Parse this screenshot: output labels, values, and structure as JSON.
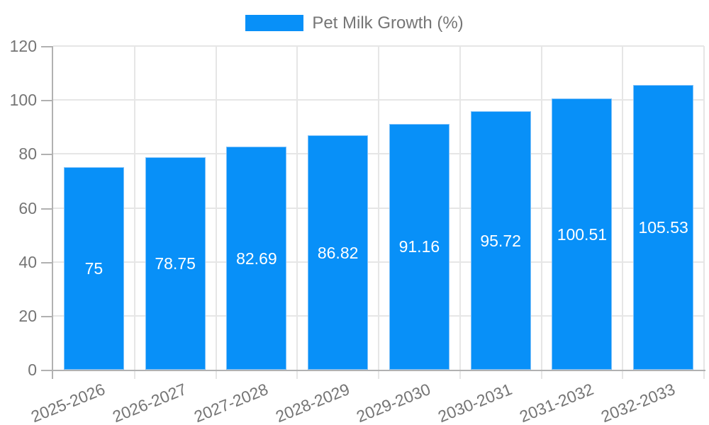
{
  "legend": {
    "label": "Pet Milk Growth (%)"
  },
  "colors": {
    "bar": "#0890f8",
    "bar_border": "#7fc1f9",
    "grid": "#e6e6e6",
    "axis": "#b1b1b1",
    "tick_text": "#757575",
    "value_text": "#ffffff",
    "background": "#ffffff"
  },
  "chart_data": {
    "type": "bar",
    "title": "Pet Milk Growth (%)",
    "categories": [
      "2025-2026",
      "2026-2027",
      "2027-2028",
      "2028-2029",
      "2029-2030",
      "2030-2031",
      "2031-2032",
      "2032-2033"
    ],
    "values": [
      75,
      78.75,
      82.69,
      86.82,
      91.16,
      95.72,
      100.51,
      105.53
    ],
    "value_label_position": "inside-center",
    "xlabel": "",
    "ylabel": "",
    "ylim": [
      0,
      120
    ],
    "yticks": [
      0,
      20,
      40,
      60,
      80,
      100,
      120
    ],
    "grid": true,
    "legend_position": "top",
    "x_tick_rotation_deg": -22
  }
}
